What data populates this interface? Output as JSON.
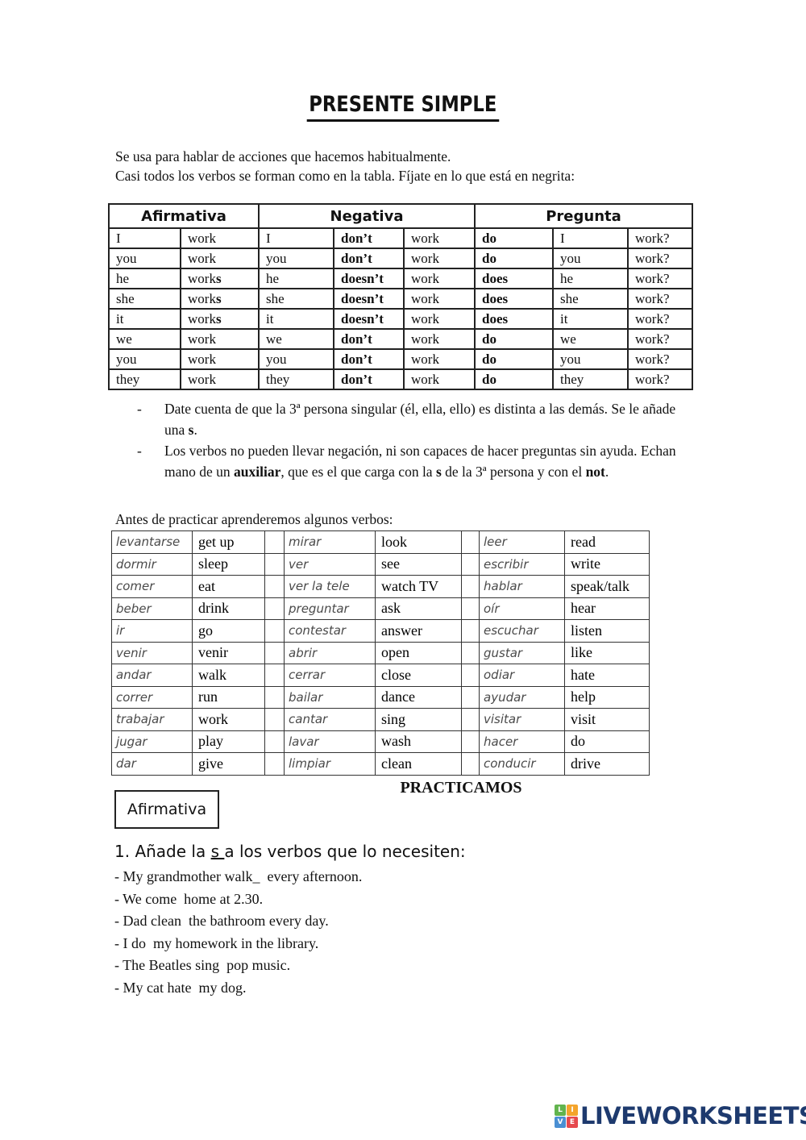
{
  "title": "PRESENTE SIMPLE",
  "intro_lines": [
    "Se usa para hablar de acciones que hacemos habitualmente.",
    "Casi todos los verbos se forman como en la tabla. Fíjate en lo que está en negrita:"
  ],
  "grammar_table": {
    "headers": [
      {
        "label": "Afirmativa",
        "span": 2
      },
      {
        "label": "Negativa",
        "span": 3
      },
      {
        "label": "Pregunta",
        "span": 3
      }
    ],
    "rows": [
      [
        {
          "t": "I"
        },
        {
          "t": "work"
        },
        {
          "t": "I"
        },
        {
          "b": "don’t"
        },
        {
          "t": "work"
        },
        {
          "b": "do"
        },
        {
          "t": "I"
        },
        {
          "t": "work?"
        }
      ],
      [
        {
          "t": "you"
        },
        {
          "t": "work"
        },
        {
          "t": "you"
        },
        {
          "b": "don’t"
        },
        {
          "t": "work"
        },
        {
          "b": "do"
        },
        {
          "t": "you"
        },
        {
          "t": "work?"
        }
      ],
      [
        {
          "t": "he"
        },
        {
          "t": "work",
          "b": "s"
        },
        {
          "t": "he"
        },
        {
          "b": "doesn’t"
        },
        {
          "t": "work"
        },
        {
          "b": "does"
        },
        {
          "t": "he"
        },
        {
          "t": "work?"
        }
      ],
      [
        {
          "t": "she"
        },
        {
          "t": "work",
          "b": "s"
        },
        {
          "t": "she"
        },
        {
          "b": "doesn’t"
        },
        {
          "t": "work"
        },
        {
          "b": "does"
        },
        {
          "t": "she"
        },
        {
          "t": "work?"
        }
      ],
      [
        {
          "t": "it"
        },
        {
          "t": "work",
          "b": "s"
        },
        {
          "t": "it"
        },
        {
          "b": "doesn’t"
        },
        {
          "t": "work"
        },
        {
          "b": "does"
        },
        {
          "t": "it"
        },
        {
          "t": "work?"
        }
      ],
      [
        {
          "t": "we"
        },
        {
          "t": "work"
        },
        {
          "t": "we"
        },
        {
          "b": "don’t"
        },
        {
          "t": "work"
        },
        {
          "b": "do"
        },
        {
          "t": "we"
        },
        {
          "t": "work?"
        }
      ],
      [
        {
          "t": "you"
        },
        {
          "t": "work"
        },
        {
          "t": "you"
        },
        {
          "b": "don’t"
        },
        {
          "t": "work"
        },
        {
          "b": "do"
        },
        {
          "t": "you"
        },
        {
          "t": "work?"
        }
      ],
      [
        {
          "t": "they"
        },
        {
          "t": "work"
        },
        {
          "t": "they"
        },
        {
          "b": "don’t"
        },
        {
          "t": "work"
        },
        {
          "b": "do"
        },
        {
          "t": "they"
        },
        {
          "t": "work?"
        }
      ]
    ]
  },
  "notes": [
    [
      {
        "t": "Date cuenta de que la 3ª persona singular (él, ella, ello) es distinta a las demás. Se le añade una "
      },
      {
        "t": "s",
        "b": true
      },
      {
        "t": "."
      }
    ],
    [
      {
        "t": "Los verbos no pueden llevar negación, ni son capaces de hacer preguntas sin ayuda. Echan mano de un "
      },
      {
        "t": "auxiliar",
        "b": true
      },
      {
        "t": ", que es el que carga con la "
      },
      {
        "t": "s",
        "b": true
      },
      {
        "t": " de la 3ª persona y con el "
      },
      {
        "t": "not",
        "b": true
      },
      {
        "t": "."
      }
    ]
  ],
  "vocab_intro": "Antes de practicar aprenderemos algunos verbos:",
  "vocab_rows": [
    [
      "levantarse",
      "get up",
      "mirar",
      "look",
      "leer",
      "read"
    ],
    [
      "dormir",
      "sleep",
      "ver",
      "see",
      "escribir",
      "write"
    ],
    [
      "comer",
      "eat",
      "ver la tele",
      "watch TV",
      "hablar",
      "speak/talk"
    ],
    [
      "beber",
      "drink",
      "preguntar",
      "ask",
      "oír",
      "hear"
    ],
    [
      "ir",
      "go",
      "contestar",
      "answer",
      "escuchar",
      "listen"
    ],
    [
      "venir",
      "venir",
      "abrir",
      "open",
      "gustar",
      "like"
    ],
    [
      "andar",
      "walk",
      "cerrar",
      "close",
      "odiar",
      "hate"
    ],
    [
      "correr",
      "run",
      "bailar",
      "dance",
      "ayudar",
      "help"
    ],
    [
      "trabajar",
      "work",
      "cantar",
      "sing",
      "visitar",
      "visit"
    ],
    [
      "jugar",
      "play",
      "lavar",
      "wash",
      "hacer",
      "do"
    ],
    [
      "dar",
      "give",
      "limpiar",
      "clean",
      "conducir",
      "drive"
    ]
  ],
  "practice": {
    "heading": "PRACTICAMOS",
    "box_label": "Afirmativa",
    "exercise_title_segments": [
      {
        "t": "1. Añade la "
      },
      {
        "t": "s ",
        "u": true
      },
      {
        "t": "a los verbos que lo necesiten:"
      }
    ],
    "sentences": [
      "- My grandmother walk_  every afternoon.",
      "- We come  home at 2.30.",
      "- Dad clean  the bathroom every day.",
      "- I do  my homework in the library.",
      "- The Beatles sing  pop music.",
      "- My cat hate  my dog."
    ]
  },
  "logo": {
    "squares": [
      {
        "letter": "L",
        "color": "#62b44e"
      },
      {
        "letter": "I",
        "color": "#f4a42c"
      },
      {
        "letter": "V",
        "color": "#4a8fd3"
      },
      {
        "letter": "E",
        "color": "#e6484d"
      }
    ],
    "text": "LIVEWORKSHEETS",
    "text_color": "#1e3a6e"
  }
}
